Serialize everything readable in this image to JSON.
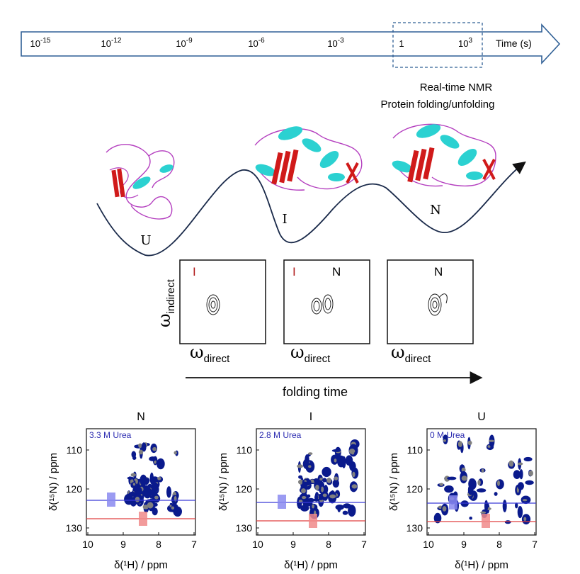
{
  "timeline": {
    "ticks": [
      {
        "base": "10",
        "exp": "-15"
      },
      {
        "base": "10",
        "exp": "-12"
      },
      {
        "base": "10",
        "exp": "-9"
      },
      {
        "base": "10",
        "exp": "-6"
      },
      {
        "base": "10",
        "exp": "-3"
      },
      {
        "base": "1",
        "exp": ""
      },
      {
        "base": "10",
        "exp": "3"
      }
    ],
    "axis_label": "Time (s)"
  },
  "annotation": {
    "line1": "Real-time NMR",
    "line2": "Protein folding/unfolding"
  },
  "landscape": {
    "states": [
      "U",
      "I",
      "N"
    ]
  },
  "spectra_small": {
    "y_symbol": "ω",
    "y_sub": "indirect",
    "x_symbol": "ω",
    "x_sub": "direct",
    "panel1_label": "I",
    "panel2_labels": [
      "I",
      "N"
    ],
    "panel3_label": "N",
    "colors": {
      "intermediate_label": "#b01818",
      "native_label": "#111111"
    }
  },
  "folding_arrow_label": "folding time",
  "hsqc": {
    "panels": [
      {
        "title": "N",
        "condition": "3.3 M Urea"
      },
      {
        "title": "I",
        "condition": "2.8 M Urea"
      },
      {
        "title": "U",
        "condition": "0 M Urea"
      }
    ],
    "x_ticks": [
      "10",
      "9",
      "8",
      "7"
    ],
    "y_ticks": [
      "110",
      "120",
      "130"
    ],
    "xlabel": "δ(¹H) / ppm",
    "ylabel": "δ(¹⁵N) / ppm",
    "colors": {
      "spectrum": "#0a1a8c",
      "reference": "#808080",
      "blue_line": "#3a3ad8",
      "red_line": "#e04040"
    }
  }
}
